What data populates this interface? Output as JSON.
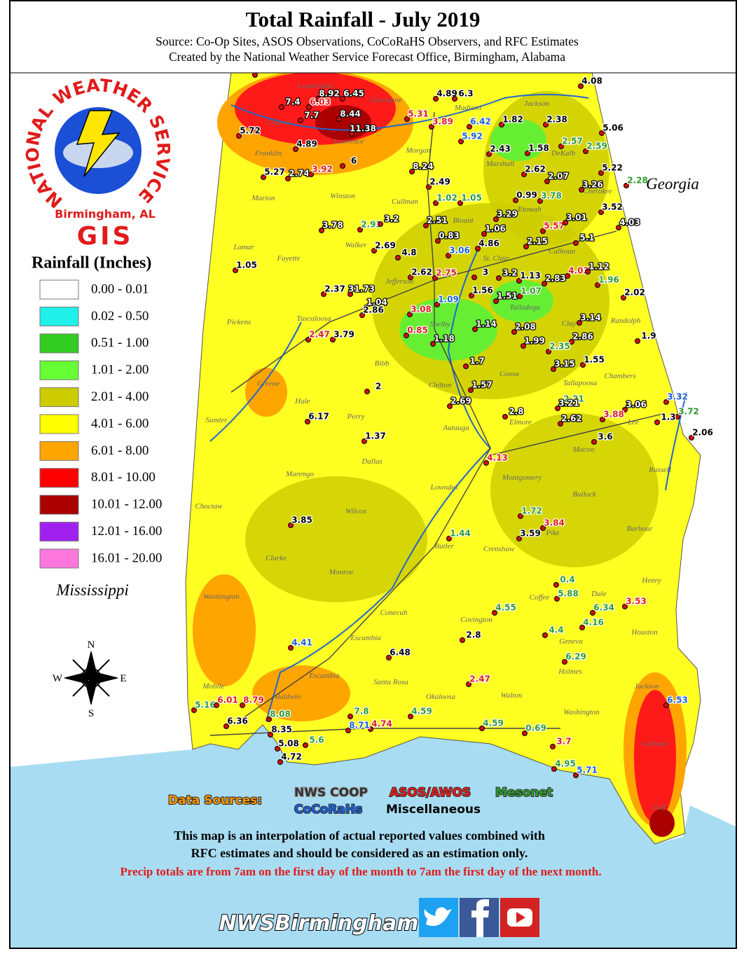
{
  "header": {
    "title": "Total Rainfall - July 2019",
    "subtitle_1": "Source: Co-Op Sites, ASOS Observations, CoCoRaHS Observers, and RFC Estimates",
    "subtitle_2": "Created by the National Weather Service Forecast Office, Birmingham, Alabama"
  },
  "logo": {
    "arc_text": "NATIONAL WEATHER SERVICE",
    "office": "Birmingham, AL",
    "gis": "GIS"
  },
  "legend": {
    "title": "Rainfall (Inches)",
    "items": [
      {
        "label": "0.00 - 0.01",
        "color": "#ffffff"
      },
      {
        "label": "0.02 - 0.50",
        "color": "#1ff0e8"
      },
      {
        "label": "0.51 - 1.00",
        "color": "#33cc22"
      },
      {
        "label": "1.01 - 2.00",
        "color": "#66ff33"
      },
      {
        "label": "2.01 - 4.00",
        "color": "#cccc00"
      },
      {
        "label": "4.01 - 6.00",
        "color": "#ffff00"
      },
      {
        "label": "6.01 - 8.00",
        "color": "#ffa500"
      },
      {
        "label": "8.01 - 10.00",
        "color": "#ff0000"
      },
      {
        "label": "10.01 - 12.00",
        "color": "#aa0000"
      },
      {
        "label": "12.01 - 16.00",
        "color": "#a020f0"
      },
      {
        "label": "16.01 - 20.00",
        "color": "#ff77dd"
      }
    ]
  },
  "map": {
    "states": [
      "Georgia",
      "Mississippi"
    ],
    "compass": [
      "N",
      "E",
      "S",
      "W"
    ],
    "counties": [
      "Lauderdale",
      "Limestone",
      "Madison",
      "Jackson",
      "Colbert",
      "Lawrence",
      "Morgan",
      "Franklin",
      "Marshall",
      "DeKalb",
      "Cherokee",
      "Marion",
      "Winston",
      "Cullman",
      "Etowah",
      "Blount",
      "Lamar",
      "Fayette",
      "Walker",
      "Calhoun",
      "St. Clair",
      "Jefferson",
      "Talladega",
      "Shelby",
      "Tuscaloosa",
      "Pickens",
      "Clay",
      "Randolph",
      "Bibb",
      "Coosa",
      "Chilton",
      "Tallapoosa",
      "Chambers",
      "Greene",
      "Hale",
      "Perry",
      "Autauga",
      "Elmore",
      "Lee",
      "Sumter",
      "Macon",
      "Dallas",
      "Russell",
      "Marengo",
      "Lowndes",
      "Montgomery",
      "Bullock",
      "Choctaw",
      "Wilcox",
      "Barbour",
      "Pike",
      "Butler",
      "Crenshaw",
      "Clarke",
      "Monroe",
      "Henry",
      "Washington",
      "Coffee",
      "Dale",
      "Conecuh",
      "Covington",
      "Houston",
      "Escambia",
      "Geneva",
      "Holmes",
      "Baldwin",
      "Santa Rosa",
      "Okaloosa",
      "Walton",
      "Jackson",
      "Washington",
      "Mobile",
      "Calhoun",
      "Gulf",
      "Escambia"
    ],
    "station_values": [
      8.8,
      4.08,
      8.92,
      6.45,
      4.89,
      6.3,
      7.4,
      6.03,
      5.31,
      7.7,
      8.44,
      1.82,
      2.38,
      3.89,
      6.42,
      5.72,
      11.38,
      5.06,
      5.92,
      4.89,
      2.43,
      1.58,
      2.57,
      2.59,
      6,
      8.24,
      5.27,
      2.74,
      3.92,
      2.62,
      2.07,
      5.22,
      2.28,
      2.49,
      3.26,
      0.99,
      3.78,
      1.02,
      1.05,
      3.52,
      3.29,
      3.78,
      2.93,
      3.2,
      2.51,
      5.57,
      3.01,
      4.03,
      1.06,
      0.83,
      5.1,
      4.86,
      2.15,
      2.69,
      3.06,
      4.8,
      1.05,
      2.62,
      2.75,
      3,
      3.2,
      1.13,
      2.83,
      4.03,
      1.12,
      1.96,
      2.37,
      31.73,
      1.56,
      1.51,
      1.07,
      2.02,
      1.04,
      1.09,
      2.86,
      3.08,
      3.14,
      1.14,
      2.08,
      2.47,
      3.79,
      0.85,
      1.18,
      2.86,
      1.99,
      1.9,
      2.35,
      1.55,
      1.7,
      3.15,
      1.57,
      2,
      2.21,
      3.32,
      2.69,
      3.21,
      3.06,
      3.72,
      6.17,
      2.8,
      3.88,
      2.62,
      1.3,
      2.06,
      1.37,
      3.6,
      4.13,
      1.72,
      3.85,
      3.84,
      1.44,
      3.59,
      0.4,
      5.88,
      3.53,
      6.34,
      4.55,
      4.16,
      4.4,
      2.8,
      4.41,
      6.48,
      6.29,
      2.47,
      6.53,
      5.16,
      6.01,
      8.79,
      7.8,
      4.59,
      8.08,
      4.74,
      8.71,
      6.36,
      4.59,
      0.69,
      8.35,
      5.6,
      5.08,
      3.7,
      4.72,
      4.95,
      5.71
    ]
  },
  "data_sources": {
    "title": "Data Sources:",
    "types": [
      "NWS COOP",
      "ASOS/AWOS",
      "Mesonet",
      "CoCoRaHs",
      "Miscellaneous"
    ]
  },
  "notes": [
    "This map is an interpolation of actual reported values combined with",
    "RFC estimates and should be considered as an estimation only.",
    "Precip totals are from 7am on the first day of the month to 7am the first day of the next month."
  ],
  "footer": {
    "handle": "NWSBirmingham"
  }
}
